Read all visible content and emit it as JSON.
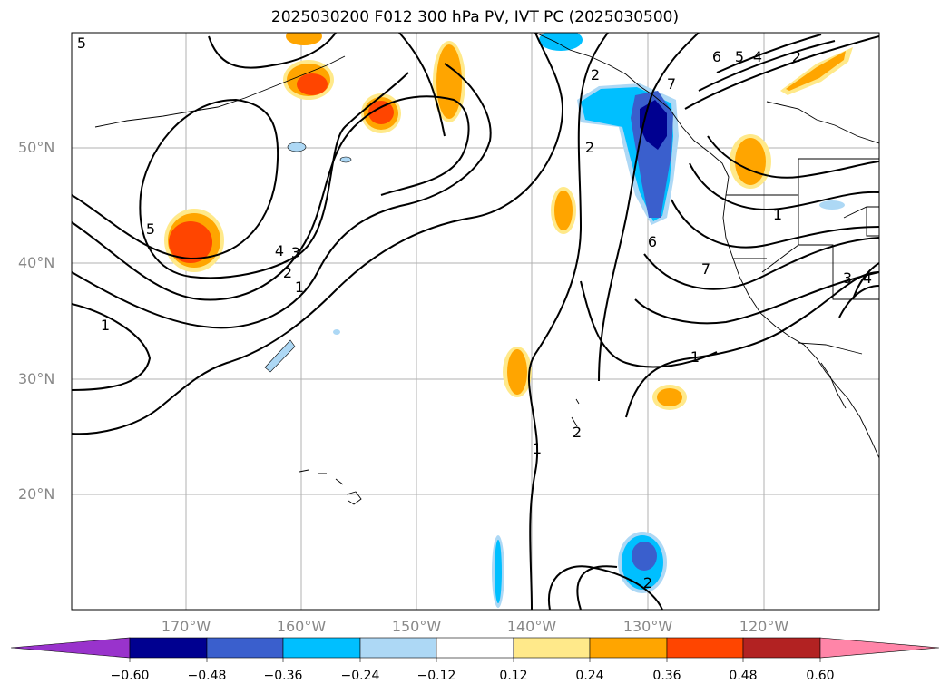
{
  "title": "2025030200 F012 300 hPa PV, IVT PC (2025030500)",
  "map": {
    "lat_labels": [
      "50°N",
      "40°N",
      "30°N",
      "20°N"
    ],
    "lon_labels": [
      "170°W",
      "160°W",
      "150°W",
      "140°W",
      "130°W",
      "120°W"
    ],
    "contour_labels": [
      "5",
      "5",
      "4",
      "3",
      "2",
      "1",
      "1",
      "2",
      "2",
      "6",
      "7",
      "6",
      "5",
      "4",
      "2",
      "1",
      "7",
      "1",
      "3",
      "4",
      "2",
      "1",
      "2"
    ],
    "colors": {
      "ocean": "#ffffff",
      "grid": "#b0b0b0",
      "contour": "#000000"
    }
  },
  "colorbar": {
    "ticks": [
      "−0.60",
      "−0.48",
      "−0.36",
      "−0.24",
      "−0.12",
      "0.12",
      "0.24",
      "0.36",
      "0.48",
      "0.60"
    ],
    "colors": [
      "#9933cc",
      "#000090",
      "#3a5fcd",
      "#00bfff",
      "#add8f5",
      "#ffffff",
      "#ffe98a",
      "#ffa500",
      "#ff4500",
      "#b22222",
      "#ff85a8"
    ]
  }
}
